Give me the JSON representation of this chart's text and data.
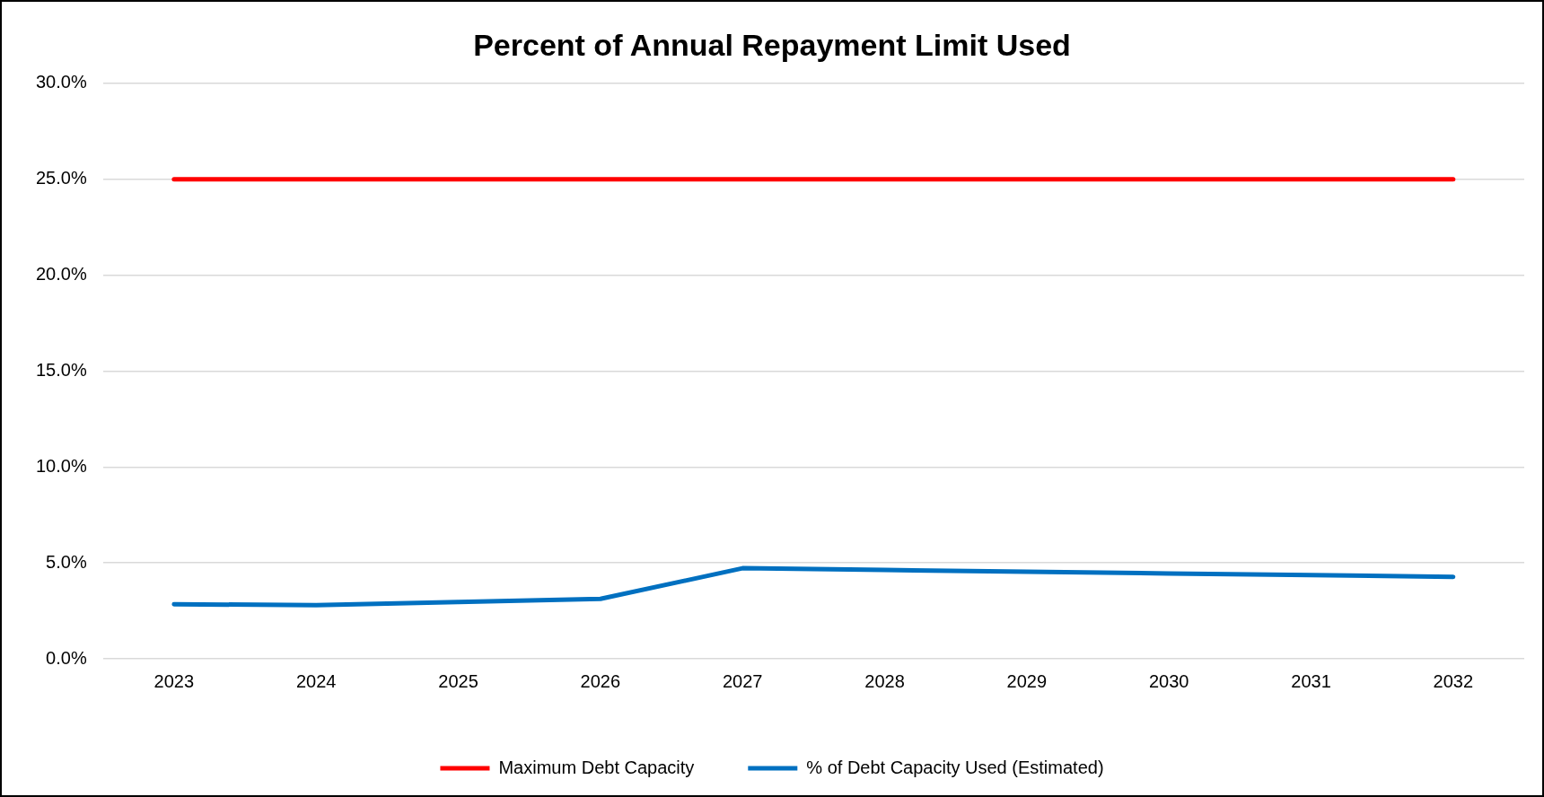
{
  "chart_data": {
    "type": "line",
    "title": "Percent of Annual Repayment Limit Used",
    "categories": [
      "2023",
      "2024",
      "2025",
      "2026",
      "2027",
      "2028",
      "2029",
      "2030",
      "2031",
      "2032"
    ],
    "series": [
      {
        "name": "Maximum Debt Capacity",
        "color": "#ff0000",
        "values": [
          25,
          25,
          25,
          25,
          25,
          25,
          25,
          25,
          25,
          25
        ]
      },
      {
        "name": "% of Debt Capacity Used (Estimated)",
        "color": "#0070c0",
        "values": [
          2.84,
          2.8,
          2.96,
          3.12,
          4.72,
          4.63,
          4.54,
          4.45,
          4.36,
          4.27
        ]
      }
    ],
    "ylim": [
      0,
      30
    ],
    "yticks": [
      {
        "value": 0,
        "label": "0.0%"
      },
      {
        "value": 5,
        "label": "5.0%"
      },
      {
        "value": 10,
        "label": "10.0%"
      },
      {
        "value": 15,
        "label": "15.0%"
      },
      {
        "value": 20,
        "label": "20.0%"
      },
      {
        "value": 25,
        "label": "25.0%"
      },
      {
        "value": 30,
        "label": "30.0%"
      }
    ],
    "grid": "y",
    "legend": "bottom",
    "marker": "none",
    "line_style": "solid"
  }
}
